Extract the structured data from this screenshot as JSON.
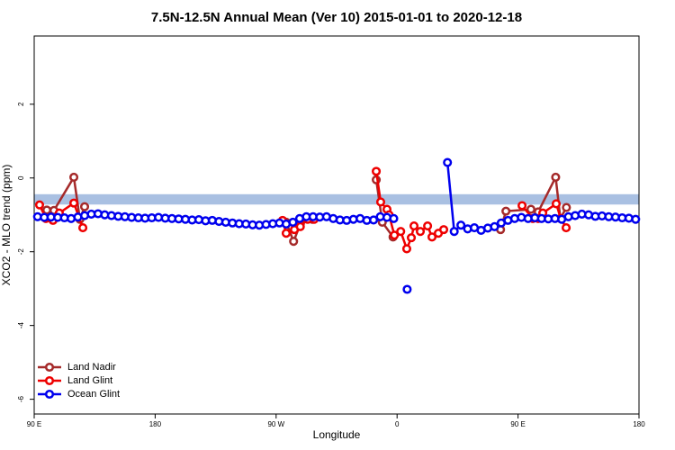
{
  "chart_data": {
    "type": "line",
    "title": "7.5N-12.5N Annual Mean (Ver 10)   2015-01-01 to 2020-12-18",
    "x_label": "Longitude",
    "y_label": "XCO2 - MLO trend (ppm)",
    "xlim": [
      90,
      540
    ],
    "xticks": [
      {
        "value": 90,
        "label": "90 E"
      },
      180,
      {
        "value": 270,
        "label": "90 W"
      },
      {
        "value": 360,
        "label": "0"
      },
      {
        "value": 450,
        "label": "90 E"
      },
      {
        "value": 540,
        "label": "180"
      }
    ],
    "ylim": [
      -6.4,
      3.85
    ],
    "yticks": [
      2,
      0,
      -2,
      -4,
      -6
    ],
    "band": [
      -0.72,
      -0.44
    ],
    "band_color": "#a9c0e2",
    "legend": "bottom-left",
    "series": [
      {
        "name": "Land Nadir",
        "color": "#a52a2a",
        "x": [
          99.4,
          104.7,
          119.5,
          124,
          127.5,
          null,
          277.5,
          283,
          288,
          292,
          297,
          null,
          344.5,
          349,
          357,
          null,
          437,
          441,
          459.6,
          465,
          478,
          481.5,
          486
        ],
        "values": [
          -0.87,
          -0.88,
          0.02,
          -1.12,
          -0.78,
          null,
          -1.2,
          -1.72,
          -1.25,
          -1.1,
          -1.12,
          null,
          -0.05,
          -1.2,
          -1.6,
          null,
          -1.4,
          -0.9,
          -0.85,
          -0.92,
          0.02,
          -1.1,
          -0.8
        ]
      },
      {
        "name": "Land Glint",
        "color": "#ee0000",
        "x": [
          94,
          98.7,
          104,
          108.7,
          119.5,
          126.2,
          null,
          274.8,
          277.5,
          283.6,
          288,
          293.5,
          298.3,
          null,
          344.5,
          347.8,
          352.5,
          354,
          358,
          362.7,
          367.2,
          370.6,
          372.6,
          377.3,
          382.7,
          386,
          390.7,
          394.7,
          null,
          453,
          461,
          465,
          468.4,
          478.4,
          481.8,
          485.8
        ],
        "values": [
          -0.73,
          -1.1,
          -1.15,
          -0.95,
          -0.68,
          -1.35,
          null,
          -1.15,
          -1.5,
          -1.4,
          -1.32,
          -1.12,
          -1.12,
          null,
          0.18,
          -0.65,
          -0.85,
          -1.0,
          -1.55,
          -1.45,
          -1.92,
          -1.62,
          -1.3,
          -1.45,
          -1.3,
          -1.6,
          -1.5,
          -1.4,
          null,
          -0.75,
          -1.1,
          -1.1,
          -0.95,
          -0.7,
          -1.1,
          -1.35
        ]
      },
      {
        "name": "Ocean Glint",
        "color": "#0000ee",
        "x": [
          92.5,
          97.5,
          102.5,
          107.5,
          112.5,
          117.5,
          122.5,
          127.5,
          132.5,
          137.5,
          142.5,
          147.5,
          152.5,
          157.5,
          162.5,
          167.5,
          172.5,
          177.5,
          182.5,
          187.5,
          192.5,
          197.5,
          202.5,
          207.5,
          212.5,
          217.5,
          222.5,
          227.5,
          232.5,
          237.5,
          242.5,
          247.5,
          252.5,
          257.5,
          262.5,
          267.5,
          272.5,
          277.5,
          282.5,
          287.5,
          292.5,
          297.5,
          302.5,
          307.5,
          312.5,
          317.5,
          322.5,
          327.5,
          332.5,
          337.5,
          342.5,
          347.5,
          352.5,
          357.5,
          362.5,
          367.5,
          372.5,
          377.5,
          382.5,
          387.5,
          392.5,
          397.5,
          402.5,
          407.5,
          412.5,
          417.5,
          422.5,
          427.5,
          432.5,
          437.5,
          442.5,
          447.5,
          452.5,
          457.5,
          462.5,
          467.5,
          472.5,
          477.5,
          482.5,
          487.5,
          492.5,
          497.5,
          502.5,
          507.5,
          512.5,
          517.5,
          522.5,
          527.5,
          532.5,
          537.5
        ],
        "values": [
          -1.05,
          -1.07,
          -1.06,
          -1.07,
          -1.08,
          -1.1,
          -1.06,
          -1.02,
          -0.98,
          -0.97,
          -1.0,
          -1.02,
          -1.04,
          -1.05,
          -1.07,
          -1.08,
          -1.09,
          -1.08,
          -1.07,
          -1.09,
          -1.1,
          -1.11,
          -1.12,
          -1.14,
          -1.13,
          -1.16,
          -1.15,
          -1.18,
          -1.2,
          -1.22,
          -1.24,
          -1.25,
          -1.27,
          -1.28,
          -1.26,
          -1.24,
          -1.22,
          -1.25,
          -1.2,
          -1.1,
          -1.05,
          -1.05,
          -1.06,
          -1.05,
          -1.1,
          -1.14,
          -1.15,
          -1.12,
          -1.1,
          -1.15,
          -1.14,
          -1.05,
          -1.07,
          -1.1,
          null,
          -3.02,
          null,
          null,
          null,
          null,
          null,
          0.42,
          -1.45,
          -1.28,
          -1.38,
          -1.35,
          -1.42,
          -1.36,
          -1.32,
          -1.22,
          -1.15,
          -1.1,
          -1.07,
          -1.1,
          -1.08,
          -1.1,
          -1.11,
          -1.1,
          -1.12,
          -1.05,
          -1.02,
          -0.98,
          -1.0,
          -1.04,
          -1.03,
          -1.05,
          -1.06,
          -1.08,
          -1.09,
          -1.12
        ]
      }
    ]
  }
}
